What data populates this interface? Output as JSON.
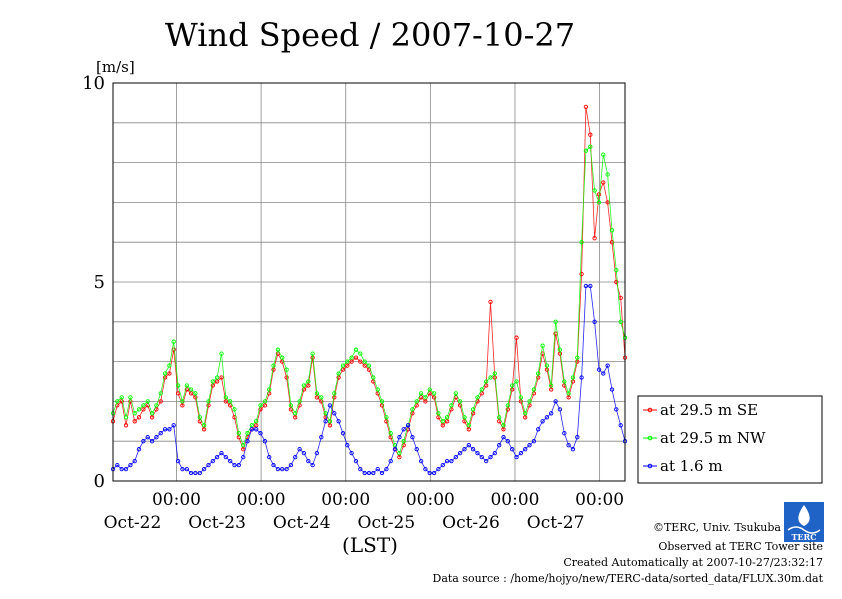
{
  "header": {
    "title": "Wind Speed / 2007-10-27"
  },
  "chart_data": {
    "type": "line",
    "title": "Wind Speed / 2007-10-27",
    "ylabel": "[m/s]",
    "xlabel": "(LST)",
    "ylim": [
      0,
      10
    ],
    "y_ticks": [
      "0",
      "5",
      "10"
    ],
    "x_range_days": [
      21.25,
      27.3
    ],
    "time_ticks": [
      {
        "time": "00:00",
        "date": "Oct-22"
      },
      {
        "time": "00:00",
        "date": "Oct-23"
      },
      {
        "time": "00:00",
        "date": "Oct-24"
      },
      {
        "time": "00:00",
        "date": "Oct-25"
      },
      {
        "time": "00:00",
        "date": "Oct-26"
      },
      {
        "time": "00:00",
        "date": "Oct-27"
      }
    ],
    "grid": true,
    "legend_position": "right",
    "series": [
      {
        "name": "at 29.5 m SE",
        "color": "#ff0000",
        "values": [
          1.5,
          1.9,
          2.0,
          1.4,
          2.0,
          1.5,
          1.6,
          1.8,
          1.9,
          1.6,
          1.8,
          2.0,
          2.6,
          2.7,
          3.3,
          2.2,
          1.9,
          2.3,
          2.2,
          2.1,
          1.5,
          1.3,
          1.9,
          2.4,
          2.5,
          2.6,
          2.0,
          1.9,
          1.6,
          1.1,
          0.8,
          1.1,
          1.3,
          1.4,
          1.8,
          1.9,
          2.2,
          2.8,
          3.2,
          3.0,
          2.6,
          1.8,
          1.6,
          1.9,
          2.3,
          2.4,
          3.1,
          2.1,
          2.0,
          1.6,
          1.4,
          2.1,
          2.6,
          2.8,
          2.9,
          3.0,
          3.1,
          3.0,
          2.9,
          2.8,
          2.5,
          2.2,
          1.9,
          1.5,
          1.1,
          0.8,
          0.6,
          0.9,
          1.3,
          1.7,
          1.9,
          2.1,
          2.0,
          2.2,
          2.1,
          1.6,
          1.4,
          1.5,
          1.8,
          2.1,
          1.9,
          1.5,
          1.3,
          1.7,
          2.0,
          2.2,
          2.4,
          4.5,
          2.6,
          1.5,
          1.3,
          1.8,
          2.3,
          3.6,
          2.0,
          1.6,
          1.9,
          2.2,
          2.6,
          3.2,
          2.8,
          2.3,
          3.7,
          3.2,
          2.4,
          2.1,
          2.5,
          3.0,
          5.2,
          9.4,
          8.7,
          6.1,
          7.2,
          7.5,
          7.0,
          6.0,
          5.0,
          4.6,
          3.1
        ]
      },
      {
        "name": "at 29.5 m NW",
        "color": "#00ff00",
        "values": [
          1.7,
          2.0,
          2.1,
          1.6,
          2.1,
          1.7,
          1.8,
          1.9,
          2.0,
          1.7,
          1.9,
          2.2,
          2.7,
          2.9,
          3.5,
          2.4,
          2.0,
          2.4,
          2.3,
          2.2,
          1.6,
          1.4,
          2.0,
          2.5,
          2.6,
          3.2,
          2.1,
          2.0,
          1.8,
          1.2,
          0.9,
          1.2,
          1.4,
          1.5,
          1.9,
          2.0,
          2.3,
          2.9,
          3.3,
          3.1,
          2.8,
          1.9,
          1.7,
          2.0,
          2.4,
          2.5,
          3.2,
          2.2,
          2.1,
          1.7,
          1.5,
          2.2,
          2.7,
          2.9,
          3.0,
          3.1,
          3.3,
          3.2,
          3.0,
          2.9,
          2.6,
          2.3,
          2.0,
          1.6,
          1.2,
          0.9,
          0.7,
          1.0,
          1.4,
          1.8,
          2.0,
          2.2,
          2.1,
          2.3,
          2.2,
          1.7,
          1.5,
          1.6,
          1.9,
          2.2,
          2.0,
          1.6,
          1.4,
          1.8,
          2.1,
          2.3,
          2.5,
          2.6,
          2.7,
          1.6,
          1.4,
          1.9,
          2.4,
          2.5,
          2.1,
          1.7,
          2.0,
          2.3,
          2.7,
          3.4,
          2.9,
          2.4,
          4.0,
          3.3,
          2.5,
          2.2,
          2.6,
          3.1,
          6.0,
          8.3,
          8.4,
          7.3,
          7.0,
          8.2,
          7.7,
          6.3,
          5.3,
          4.0,
          3.6
        ]
      },
      {
        "name": "at 1.6 m",
        "color": "#0000ff",
        "values": [
          0.3,
          0.4,
          0.3,
          0.3,
          0.4,
          0.5,
          0.8,
          1.0,
          1.1,
          1.0,
          1.1,
          1.2,
          1.3,
          1.3,
          1.4,
          0.5,
          0.3,
          0.3,
          0.2,
          0.2,
          0.2,
          0.3,
          0.4,
          0.5,
          0.6,
          0.7,
          0.6,
          0.5,
          0.4,
          0.4,
          0.6,
          1.0,
          1.3,
          1.3,
          1.2,
          1.0,
          0.6,
          0.4,
          0.3,
          0.3,
          0.3,
          0.4,
          0.6,
          0.8,
          0.7,
          0.5,
          0.4,
          0.7,
          1.1,
          1.5,
          1.9,
          1.7,
          1.5,
          1.2,
          0.9,
          0.7,
          0.5,
          0.3,
          0.2,
          0.2,
          0.2,
          0.3,
          0.2,
          0.3,
          0.5,
          0.8,
          1.1,
          1.3,
          1.4,
          1.1,
          0.8,
          0.5,
          0.3,
          0.2,
          0.2,
          0.3,
          0.4,
          0.5,
          0.5,
          0.6,
          0.7,
          0.8,
          0.9,
          0.8,
          0.7,
          0.6,
          0.5,
          0.6,
          0.7,
          0.9,
          1.1,
          1.0,
          0.8,
          0.6,
          0.7,
          0.8,
          0.9,
          1.0,
          1.3,
          1.5,
          1.6,
          1.7,
          2.0,
          1.8,
          1.2,
          0.9,
          0.8,
          1.1,
          2.6,
          4.9,
          4.9,
          4.0,
          2.8,
          2.7,
          2.9,
          2.3,
          1.8,
          1.4,
          1.0
        ]
      }
    ]
  },
  "credits": {
    "copyright": "©TERC, Univ. Tsukuba",
    "observed": "Observed at TERC Tower site",
    "created": "Created Automatically at 2007-10-27/23:32:17",
    "source": "Data source : /home/hojyo/new/TERC-data/sorted_data/FLUX.30m.dat",
    "logo_text": "TERC"
  }
}
